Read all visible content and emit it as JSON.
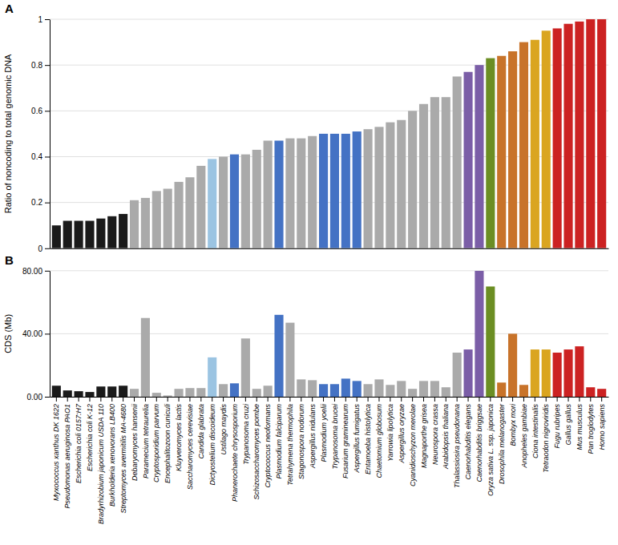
{
  "chart_data": [
    {
      "type": "bar",
      "title": "A",
      "ylabel": "Ratio of noncoding to total genomic DNA",
      "categories": [
        "Myxococcus xanthus DK 1622",
        "Pseudomonas aeruginosa PAO1",
        "Escherichia coli 0157:H7",
        "Escherichia coli K-12",
        "Bradyrhizobium japonicum USDA 110",
        "Burkholderia xenovorans LB400",
        "Streptomyces avermitilis MA-4680",
        "Debaryomyces hansenii",
        "Paramecium tetraurelia",
        "Cryptosporidium parvum",
        "Encephalitozoon cuniculi",
        "Kluyveromyces lactis",
        "Saccharomyces cerevisiae",
        "Candida glabrata",
        "Dictyostelium discoideum",
        "Ustilago maydis",
        "Phanerochaete chrysosporium",
        "Trypanosoma cruzi",
        "Schizosaccharomyces pombe",
        "Cryptococcus neoformans",
        "Plasmodium falciparum",
        "Tetrahymena thermophila",
        "Stagonospora nodorum",
        "Aspergillus nidulans",
        "Plasmodium yoelii",
        "Trypanosoma brucei",
        "Fusarium graminearum",
        "Aspergillus fumigatus",
        "Entamoeba histolytica",
        "Chaetomium globosum",
        "Yarrowia lipolytica",
        "Aspergillus oryzae",
        "Cyanidioschyzon merolae",
        "Magnaporthe grisea",
        "Neurospora crassa",
        "Arabidopsis thaliana",
        "Thalassiosira pseudonana",
        "Caenorhabditis elegans",
        "Caenorhabditis briggsae",
        "Oryza sativa L. ssp. japonica",
        "Drosophila melanogaster",
        "Bombyx mori",
        "Anopheles gambiae",
        "Ciona intestinalis",
        "Tetraodon nigroviridis",
        "Fugu rubripes",
        "Gallus gallus",
        "Mus musculus",
        "Pan troglodytes",
        "Homo sapiens"
      ],
      "values": [
        0.1,
        0.12,
        0.12,
        0.12,
        0.13,
        0.14,
        0.15,
        0.21,
        0.22,
        0.25,
        0.26,
        0.29,
        0.31,
        0.36,
        0.39,
        0.4,
        0.41,
        0.41,
        0.43,
        0.47,
        0.47,
        0.48,
        0.48,
        0.49,
        0.5,
        0.5,
        0.5,
        0.51,
        0.52,
        0.53,
        0.55,
        0.56,
        0.6,
        0.63,
        0.66,
        0.66,
        0.75,
        0.77,
        0.8,
        0.83,
        0.84,
        0.86,
        0.9,
        0.91,
        0.95,
        0.96,
        0.98,
        0.99,
        1.0,
        1.0
      ],
      "colors": [
        "#1a1a1a",
        "#1a1a1a",
        "#1a1a1a",
        "#1a1a1a",
        "#1a1a1a",
        "#1a1a1a",
        "#1a1a1a",
        "#aaaaaa",
        "#aaaaaa",
        "#aaaaaa",
        "#aaaaaa",
        "#aaaaaa",
        "#aaaaaa",
        "#aaaaaa",
        "#9bc4e2",
        "#aaaaaa",
        "#4472c4",
        "#aaaaaa",
        "#aaaaaa",
        "#aaaaaa",
        "#4472c4",
        "#aaaaaa",
        "#aaaaaa",
        "#aaaaaa",
        "#4472c4",
        "#4472c4",
        "#4472c4",
        "#4472c4",
        "#aaaaaa",
        "#aaaaaa",
        "#aaaaaa",
        "#aaaaaa",
        "#aaaaaa",
        "#aaaaaa",
        "#aaaaaa",
        "#aaaaaa",
        "#aaaaaa",
        "#7b5ea7",
        "#7b5ea7",
        "#6b8e23",
        "#c8732a",
        "#c8732a",
        "#c8732a",
        "#daa520",
        "#daa520",
        "#cc2222",
        "#cc2222",
        "#cc2222",
        "#cc2222",
        "#cc2222"
      ],
      "ylim": [
        0,
        1.0
      ],
      "yticks": [
        0,
        0.2,
        0.4,
        0.6,
        0.8,
        1
      ],
      "grid": true,
      "tick_labels": "y"
    },
    {
      "type": "bar",
      "title": "B",
      "ylabel": "CDS (Mb)",
      "categories": [
        "Myxococcus xanthus DK 1622",
        "Pseudomonas aeruginosa PAO1",
        "Escherichia coli 0157:H7",
        "Escherichia coli K-12",
        "Bradyrhizobium japonicum USDA 110",
        "Burkholderia xenovorans LB400",
        "Streptomyces avermitilis MA-4680",
        "Debaryomyces hansenii",
        "Paramecium tetraurelia",
        "Cryptosporidium parvum",
        "Encephalitozoon cuniculi",
        "Kluyveromyces lactis",
        "Saccharomyces cerevisiae",
        "Candida glabrata",
        "Dictyostelium discoideum",
        "Ustilago maydis",
        "Phanerochaete chrysosporium",
        "Trypanosoma cruzi",
        "Schizosaccharomyces pombe",
        "Cryptococcus neoformans",
        "Plasmodium falciparum",
        "Tetrahymena thermophila",
        "Stagonospora nodorum",
        "Aspergillus nidulans",
        "Plasmodium yoelii",
        "Trypanosoma brucei",
        "Fusarium graminearum",
        "Aspergillus fumigatus",
        "Entamoeba histolytica",
        "Chaetomium globosum",
        "Yarrowia lipolytica",
        "Aspergillus oryzae",
        "Cyanidioschyzon merolae",
        "Magnaporthe grisea",
        "Neurospora crassa",
        "Arabidopsis thaliana",
        "Thalassiosira pseudonana",
        "Caenorhabditis elegans",
        "Caenorhabditis briggsae",
        "Oryza sativa L. ssp. japonica",
        "Drosophila melanogaster",
        "Bombyx mori",
        "Anopheles gambiae",
        "Ciona intestinalis",
        "Tetraodon nigroviridis",
        "Fugu rubripes",
        "Gallus gallus",
        "Mus musculus",
        "Pan troglodytes",
        "Homo sapiens"
      ],
      "values": [
        7.0,
        4.0,
        3.5,
        3.0,
        6.5,
        6.5,
        7.0,
        5.0,
        50.0,
        2.5,
        0.8,
        5.0,
        5.5,
        5.5,
        25.0,
        8.0,
        8.5,
        37.0,
        5.0,
        7.0,
        52.0,
        47.0,
        11.0,
        10.5,
        8.0,
        8.0,
        11.5,
        10.0,
        8.0,
        11.0,
        7.5,
        10.0,
        5.0,
        10.0,
        10.0,
        6.0,
        28.0,
        30.0,
        80.0,
        70.0,
        9.0,
        40.0,
        7.5,
        30.0,
        30.0,
        28.0,
        30.0,
        32.0,
        6.0,
        5.0
      ],
      "colors": [
        "#1a1a1a",
        "#1a1a1a",
        "#1a1a1a",
        "#1a1a1a",
        "#1a1a1a",
        "#1a1a1a",
        "#1a1a1a",
        "#aaaaaa",
        "#aaaaaa",
        "#aaaaaa",
        "#aaaaaa",
        "#aaaaaa",
        "#aaaaaa",
        "#aaaaaa",
        "#9bc4e2",
        "#aaaaaa",
        "#4472c4",
        "#aaaaaa",
        "#aaaaaa",
        "#aaaaaa",
        "#4472c4",
        "#aaaaaa",
        "#aaaaaa",
        "#aaaaaa",
        "#4472c4",
        "#4472c4",
        "#4472c4",
        "#4472c4",
        "#aaaaaa",
        "#aaaaaa",
        "#aaaaaa",
        "#aaaaaa",
        "#aaaaaa",
        "#aaaaaa",
        "#aaaaaa",
        "#aaaaaa",
        "#aaaaaa",
        "#7b5ea7",
        "#7b5ea7",
        "#6b8e23",
        "#c8732a",
        "#c8732a",
        "#c8732a",
        "#daa520",
        "#daa520",
        "#cc2222",
        "#cc2222",
        "#cc2222",
        "#cc2222",
        "#cc2222"
      ],
      "ylim": [
        0,
        80.0
      ],
      "yticks": [
        {
          "value": 0,
          "label": "0.00"
        },
        {
          "value": 40,
          "label": "40.00"
        },
        {
          "value": 80,
          "label": "80.00"
        }
      ],
      "grid": true
    }
  ]
}
